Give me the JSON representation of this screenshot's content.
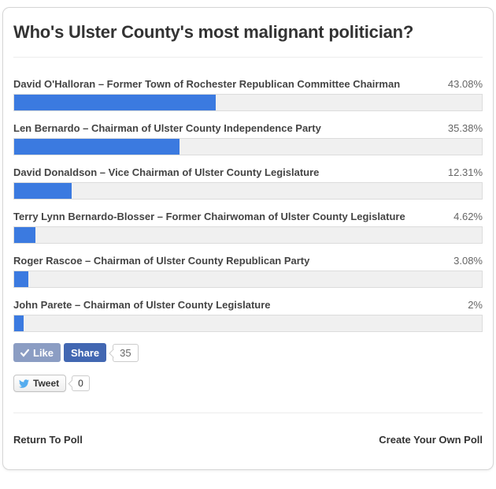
{
  "poll": {
    "question": "Who's Ulster County's most malignant politician?",
    "options": [
      {
        "label": "David O'Halloran – Former Town of Rochester Republican Committee Chairman",
        "percent": 43.08,
        "percent_label": "43.08%"
      },
      {
        "label": "Len Bernardo – Chairman of Ulster County Independence Party",
        "percent": 35.38,
        "percent_label": "35.38%"
      },
      {
        "label": "David Donaldson – Vice Chairman of Ulster County Legislature",
        "percent": 12.31,
        "percent_label": "12.31%"
      },
      {
        "label": "Terry Lynn Bernardo-Blosser – Former Chairwoman of Ulster County Legislature",
        "percent": 4.62,
        "percent_label": "4.62%"
      },
      {
        "label": "Roger Rascoe – Chairman of Ulster County Republican Party",
        "percent": 3.08,
        "percent_label": "3.08%"
      },
      {
        "label": "John Parete – Chairman of Ulster County Legislature",
        "percent": 2,
        "percent_label": "2%"
      }
    ]
  },
  "social": {
    "facebook": {
      "like_label": "Like",
      "share_label": "Share",
      "count": "35"
    },
    "twitter": {
      "tweet_label": "Tweet",
      "count": "0"
    }
  },
  "footer": {
    "return_link": "Return To Poll",
    "create_link": "Create Your Own Poll"
  },
  "colors": {
    "bar_fill": "#3b7ae0",
    "bar_track": "#f0f0f0",
    "fb_like": "#8b9dc3",
    "fb_share": "#4267b2",
    "twitter_blue": "#55acee"
  },
  "chart_data": {
    "type": "bar",
    "title": "Who's Ulster County's most malignant politician?",
    "orientation": "horizontal",
    "categories": [
      "David O'Halloran – Former Town of Rochester Republican Committee Chairman",
      "Len Bernardo – Chairman of Ulster County Independence Party",
      "David Donaldson – Vice Chairman of Ulster County Legislature",
      "Terry Lynn Bernardo-Blosser – Former Chairwoman of Ulster County Legislature",
      "Roger Rascoe – Chairman of Ulster County Republican Party",
      "John Parete – Chairman of Ulster County Legislature"
    ],
    "values": [
      43.08,
      35.38,
      12.31,
      4.62,
      3.08,
      2
    ],
    "value_unit": "%",
    "xlabel": "",
    "ylabel": "",
    "xlim": [
      0,
      100
    ],
    "grid": false,
    "legend": false
  }
}
